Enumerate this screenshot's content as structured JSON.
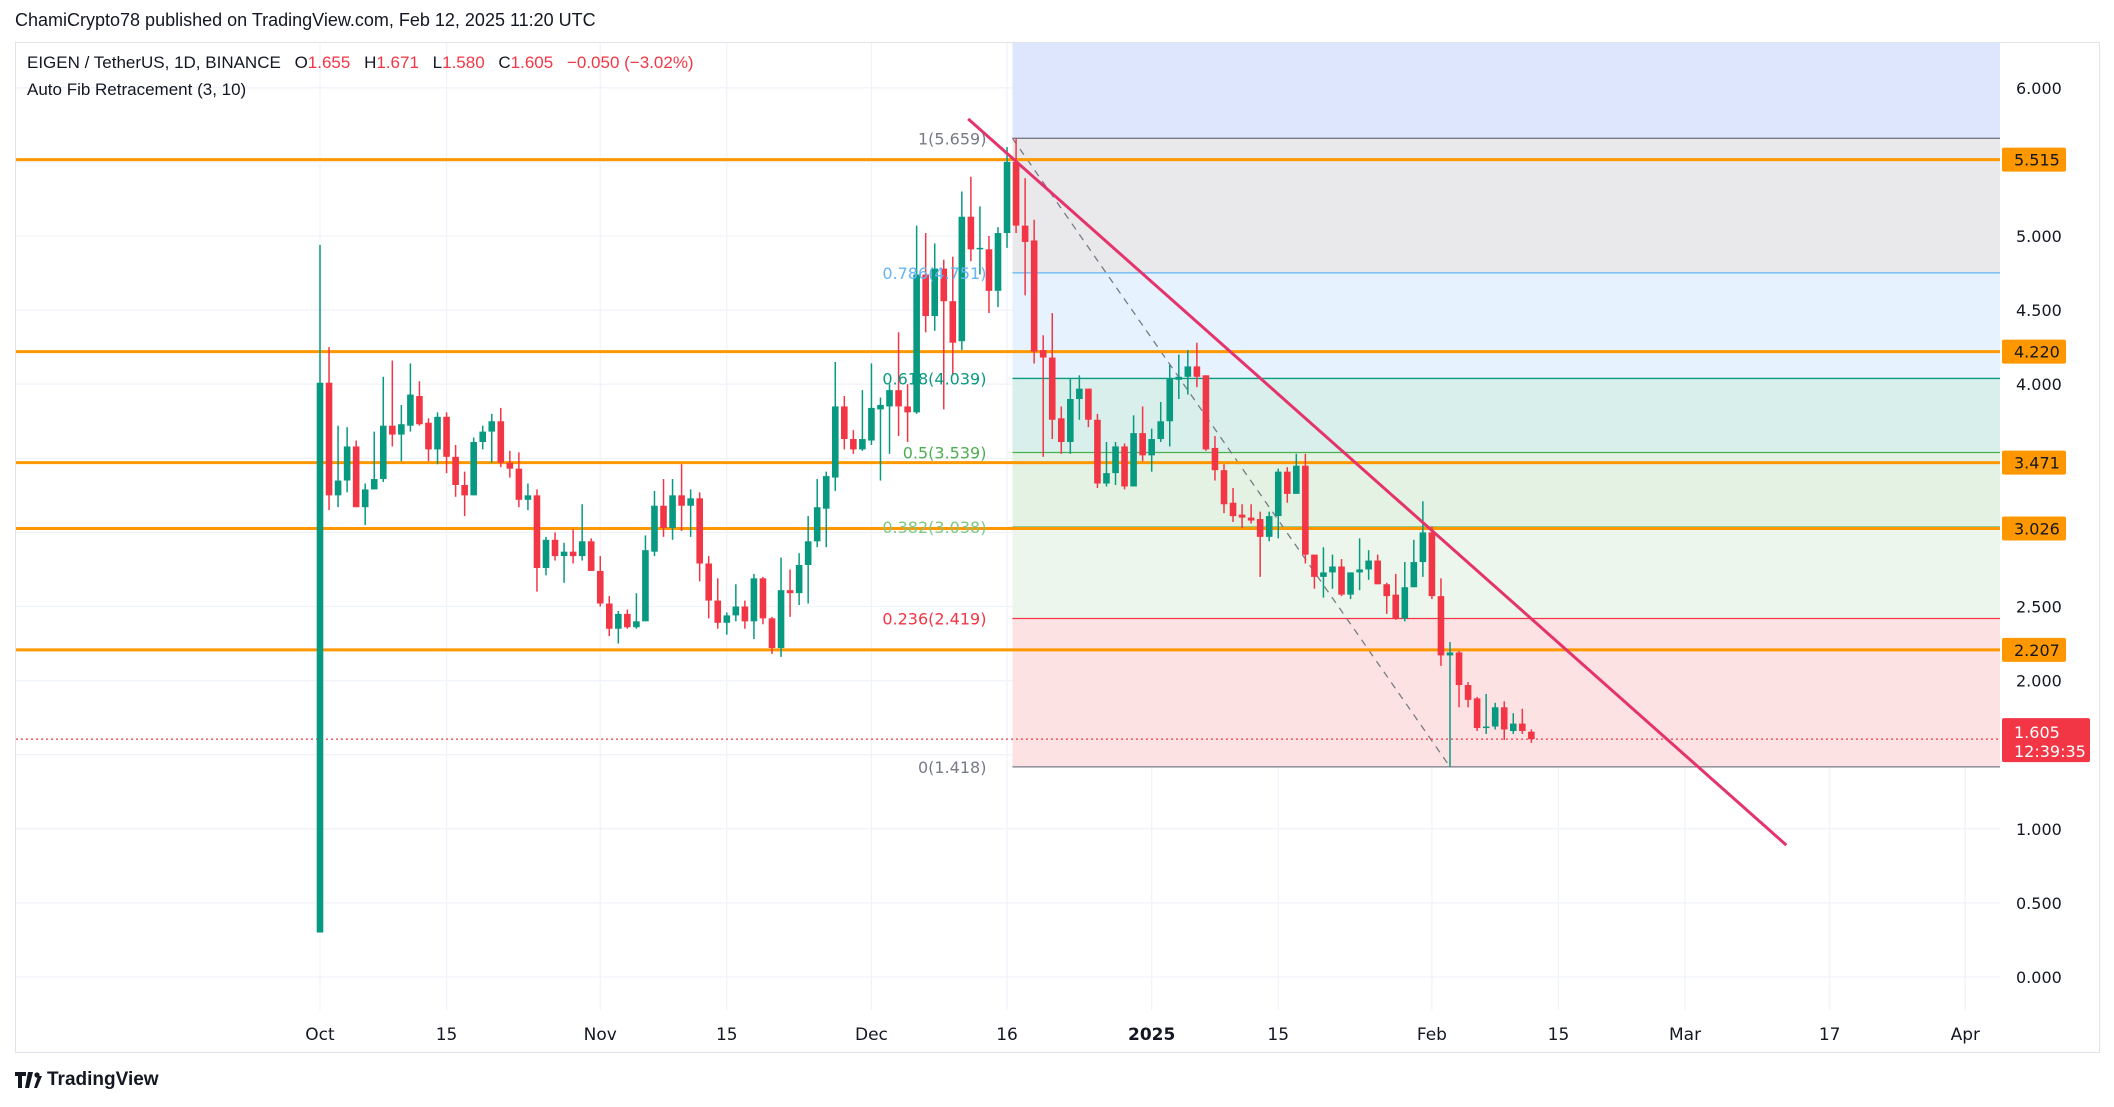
{
  "header": {
    "published": "ChamiCrypto78 published on TradingView.com, Feb 12, 2025 11:20 UTC"
  },
  "legend": {
    "symbol": "EIGEN / TetherUS, 1D, BINANCE",
    "o_label": "O",
    "o": "1.655",
    "h_label": "H",
    "h": "1.671",
    "l_label": "L",
    "l": "1.580",
    "c_label": "C",
    "c": "1.605",
    "change": "−0.050 (−3.02%)",
    "indicator": "Auto Fib Retracement (3, 10)"
  },
  "footer": {
    "brand": "TradingView"
  },
  "colors": {
    "up": "#089981",
    "down": "#f23645",
    "horizontal": "#ff9800",
    "trendline": "#e5336b",
    "price_line": "#f23645"
  },
  "chart_data": {
    "type": "candlestick",
    "symbol": "EIGEN/USDT",
    "interval": "1D",
    "start_date": "2024-10-01",
    "ohlc_fields": [
      "open",
      "high",
      "low",
      "close"
    ],
    "candles": [
      [
        0.3,
        4.94,
        0.3,
        4.01
      ],
      [
        4.01,
        4.25,
        3.15,
        3.25
      ],
      [
        3.25,
        3.72,
        3.17,
        3.35
      ],
      [
        3.35,
        3.71,
        3.27,
        3.58
      ],
      [
        3.58,
        3.62,
        3.17,
        3.17
      ],
      [
        3.17,
        3.33,
        3.05,
        3.29
      ],
      [
        3.29,
        3.68,
        3.29,
        3.36
      ],
      [
        3.36,
        4.05,
        3.34,
        3.72
      ],
      [
        3.72,
        4.16,
        3.58,
        3.66
      ],
      [
        3.66,
        3.86,
        3.48,
        3.73
      ],
      [
        3.72,
        4.14,
        3.68,
        3.93
      ],
      [
        3.92,
        4.02,
        3.72,
        3.73
      ],
      [
        3.74,
        3.77,
        3.48,
        3.56
      ],
      [
        3.56,
        3.81,
        3.46,
        3.78
      ],
      [
        3.78,
        3.81,
        3.4,
        3.51
      ],
      [
        3.51,
        3.59,
        3.24,
        3.32
      ],
      [
        3.32,
        3.41,
        3.11,
        3.25
      ],
      [
        3.25,
        3.64,
        3.25,
        3.61
      ],
      [
        3.61,
        3.72,
        3.56,
        3.68
      ],
      [
        3.68,
        3.8,
        3.47,
        3.75
      ],
      [
        3.75,
        3.84,
        3.44,
        3.47
      ],
      [
        3.47,
        3.55,
        3.37,
        3.43
      ],
      [
        3.43,
        3.54,
        3.17,
        3.22
      ],
      [
        3.22,
        3.33,
        3.15,
        3.25
      ],
      [
        3.25,
        3.29,
        2.6,
        2.76
      ],
      [
        2.76,
        2.97,
        2.71,
        2.95
      ],
      [
        2.95,
        3.0,
        2.81,
        2.84
      ],
      [
        2.84,
        2.93,
        2.66,
        2.87
      ],
      [
        2.87,
        3.02,
        2.79,
        2.84
      ],
      [
        2.84,
        3.19,
        2.81,
        2.94
      ],
      [
        2.94,
        2.96,
        2.74,
        2.74
      ],
      [
        2.74,
        2.84,
        2.5,
        2.52
      ],
      [
        2.52,
        2.57,
        2.3,
        2.35
      ],
      [
        2.35,
        2.47,
        2.25,
        2.45
      ],
      [
        2.45,
        2.48,
        2.35,
        2.36
      ],
      [
        2.36,
        2.59,
        2.35,
        2.4
      ],
      [
        2.4,
        2.98,
        2.4,
        2.88
      ],
      [
        2.87,
        3.28,
        2.84,
        3.18
      ],
      [
        3.18,
        3.36,
        2.97,
        3.03
      ],
      [
        3.03,
        3.36,
        2.95,
        3.25
      ],
      [
        3.25,
        3.46,
        3.01,
        3.18
      ],
      [
        3.18,
        3.29,
        2.97,
        3.23
      ],
      [
        3.23,
        3.27,
        2.67,
        2.79
      ],
      [
        2.79,
        2.84,
        2.42,
        2.54
      ],
      [
        2.54,
        2.69,
        2.35,
        2.39
      ],
      [
        2.39,
        2.46,
        2.31,
        2.44
      ],
      [
        2.44,
        2.65,
        2.4,
        2.5
      ],
      [
        2.5,
        2.54,
        2.35,
        2.4
      ],
      [
        2.4,
        2.72,
        2.28,
        2.69
      ],
      [
        2.69,
        2.7,
        2.38,
        2.42
      ],
      [
        2.42,
        2.43,
        2.18,
        2.22
      ],
      [
        2.22,
        2.83,
        2.16,
        2.61
      ],
      [
        2.61,
        2.75,
        2.43,
        2.59
      ],
      [
        2.59,
        2.86,
        2.51,
        2.78
      ],
      [
        2.78,
        3.11,
        2.52,
        2.94
      ],
      [
        2.94,
        3.36,
        2.9,
        3.17
      ],
      [
        3.16,
        3.41,
        2.9,
        3.38
      ],
      [
        3.37,
        4.15,
        3.28,
        3.85
      ],
      [
        3.85,
        3.92,
        3.56,
        3.63
      ],
      [
        3.63,
        3.69,
        3.53,
        3.56
      ],
      [
        3.56,
        3.96,
        3.55,
        3.63
      ],
      [
        3.62,
        4.14,
        3.59,
        3.84
      ],
      [
        3.83,
        3.91,
        3.35,
        3.86
      ],
      [
        3.85,
        4.0,
        3.53,
        3.96
      ],
      [
        3.96,
        4.35,
        3.65,
        3.85
      ],
      [
        3.85,
        4.0,
        3.61,
        3.81
      ],
      [
        3.81,
        5.07,
        3.8,
        4.74
      ],
      [
        4.74,
        5.02,
        4.35,
        4.46
      ],
      [
        4.46,
        4.95,
        4.36,
        4.78
      ],
      [
        4.78,
        4.84,
        3.83,
        4.56
      ],
      [
        4.56,
        4.86,
        4.06,
        4.28
      ],
      [
        4.29,
        5.3,
        4.23,
        5.13
      ],
      [
        5.13,
        5.4,
        4.83,
        4.91
      ],
      [
        4.91,
        5.2,
        4.74,
        4.92
      ],
      [
        4.91,
        5.0,
        4.48,
        4.63
      ],
      [
        4.63,
        5.06,
        4.52,
        5.02
      ],
      [
        5.02,
        5.6,
        4.92,
        5.5
      ],
      [
        5.5,
        5.66,
        5.02,
        5.07
      ],
      [
        5.07,
        5.39,
        4.6,
        4.96
      ],
      [
        4.97,
        5.11,
        4.14,
        4.22
      ],
      [
        4.23,
        4.33,
        3.51,
        4.18
      ],
      [
        4.18,
        4.48,
        3.63,
        3.76
      ],
      [
        3.77,
        3.85,
        3.53,
        3.61
      ],
      [
        3.61,
        4.04,
        3.53,
        3.9
      ],
      [
        3.9,
        4.06,
        3.76,
        3.97
      ],
      [
        3.97,
        3.97,
        3.71,
        3.76
      ],
      [
        3.76,
        3.8,
        3.3,
        3.33
      ],
      [
        3.33,
        3.61,
        3.31,
        3.4
      ],
      [
        3.4,
        3.61,
        3.32,
        3.58
      ],
      [
        3.58,
        3.6,
        3.29,
        3.31
      ],
      [
        3.31,
        3.79,
        3.31,
        3.67
      ],
      [
        3.67,
        3.85,
        3.48,
        3.52
      ],
      [
        3.52,
        3.7,
        3.41,
        3.63
      ],
      [
        3.63,
        3.88,
        3.61,
        3.75
      ],
      [
        3.75,
        4.13,
        3.58,
        4.04
      ],
      [
        4.03,
        4.2,
        3.9,
        4.05
      ],
      [
        4.05,
        4.23,
        3.93,
        4.12
      ],
      [
        4.12,
        4.28,
        3.98,
        4.05
      ],
      [
        4.06,
        4.06,
        3.55,
        3.56
      ],
      [
        3.57,
        3.65,
        3.35,
        3.42
      ],
      [
        3.42,
        3.46,
        3.13,
        3.19
      ],
      [
        3.2,
        3.3,
        3.07,
        3.11
      ],
      [
        3.12,
        3.19,
        3.03,
        3.1
      ],
      [
        3.1,
        3.19,
        3.06,
        3.08
      ],
      [
        3.09,
        3.14,
        2.7,
        2.97
      ],
      [
        2.97,
        3.14,
        2.94,
        3.11
      ],
      [
        3.11,
        3.43,
        2.96,
        3.41
      ],
      [
        3.41,
        3.44,
        3.2,
        3.26
      ],
      [
        3.26,
        3.53,
        3.26,
        3.45
      ],
      [
        3.45,
        3.53,
        2.79,
        2.85
      ],
      [
        2.85,
        2.85,
        2.62,
        2.7
      ],
      [
        2.7,
        2.9,
        2.56,
        2.73
      ],
      [
        2.73,
        2.85,
        2.62,
        2.77
      ],
      [
        2.77,
        2.82,
        2.57,
        2.58
      ],
      [
        2.58,
        2.73,
        2.55,
        2.73
      ],
      [
        2.73,
        2.96,
        2.61,
        2.75
      ],
      [
        2.75,
        2.88,
        2.68,
        2.81
      ],
      [
        2.81,
        2.85,
        2.65,
        2.65
      ],
      [
        2.65,
        2.66,
        2.45,
        2.57
      ],
      [
        2.58,
        2.72,
        2.41,
        2.42
      ],
      [
        2.42,
        2.8,
        2.4,
        2.63
      ],
      [
        2.63,
        2.95,
        2.63,
        2.8
      ],
      [
        2.8,
        3.21,
        2.7,
        3.0
      ],
      [
        3.0,
        3.04,
        2.55,
        2.57
      ],
      [
        2.57,
        2.69,
        2.1,
        2.17
      ],
      [
        2.17,
        2.26,
        1.42,
        2.19
      ],
      [
        2.19,
        2.2,
        1.82,
        1.97
      ],
      [
        1.97,
        1.99,
        1.82,
        1.87
      ],
      [
        1.88,
        1.89,
        1.66,
        1.68
      ],
      [
        1.68,
        1.91,
        1.64,
        1.69
      ],
      [
        1.69,
        1.85,
        1.67,
        1.82
      ],
      [
        1.82,
        1.86,
        1.6,
        1.67
      ],
      [
        1.66,
        1.78,
        1.64,
        1.71
      ],
      [
        1.71,
        1.81,
        1.64,
        1.66
      ],
      [
        1.655,
        1.671,
        1.58,
        1.605
      ]
    ],
    "y_axis": {
      "range": [
        0,
        6
      ],
      "ticks": [
        "6.000",
        "5.000",
        "4.500",
        "4.000",
        "2.500",
        "2.000",
        "1.000",
        "0.500",
        "0.000"
      ]
    },
    "x_axis": {
      "ticks": [
        {
          "label": "Oct",
          "day": 0
        },
        {
          "label": "15",
          "day": 14
        },
        {
          "label": "Nov",
          "day": 31
        },
        {
          "label": "15",
          "day": 45
        },
        {
          "label": "Dec",
          "day": 61
        },
        {
          "label": "16",
          "day": 76
        },
        {
          "label": "2025",
          "day": 92,
          "bold": true
        },
        {
          "label": "15",
          "day": 106
        },
        {
          "label": "Feb",
          "day": 123
        },
        {
          "label": "15",
          "day": 137
        },
        {
          "label": "Mar",
          "day": 151
        },
        {
          "label": "17",
          "day": 167
        },
        {
          "label": "Apr",
          "day": 182
        }
      ]
    },
    "horizontal_levels": [
      {
        "value": 5.515,
        "label": "5.515"
      },
      {
        "value": 4.22,
        "label": "4.220"
      },
      {
        "value": 3.471,
        "label": "3.471"
      },
      {
        "value": 3.026,
        "label": "3.026"
      },
      {
        "value": 2.207,
        "label": "2.207"
      }
    ],
    "fib": {
      "start_day": 76.6,
      "end_day": 125,
      "levels": [
        {
          "ratio": 1,
          "price": 5.659,
          "label": "1(5.659)",
          "color": "#787b86",
          "fill": "#e9e9ec"
        },
        {
          "ratio": 0.786,
          "price": 4.751,
          "label": "0.786(4.751)",
          "color": "#64b5f6",
          "fill": "#e6f2fd"
        },
        {
          "ratio": 0.618,
          "price": 4.039,
          "label": "0.618(4.039)",
          "color": "#089981",
          "fill": "#d9efeb"
        },
        {
          "ratio": 0.5,
          "price": 3.539,
          "label": "0.5(3.539)",
          "color": "#4caf50",
          "fill": "#e3f2e3"
        },
        {
          "ratio": 0.382,
          "price": 3.038,
          "label": "0.382(3.038)",
          "color": "#81c784",
          "fill": "#ecf6ec"
        },
        {
          "ratio": 0.236,
          "price": 2.419,
          "label": "0.236(2.419)",
          "color": "#f23645",
          "fill": "#fde2e3"
        },
        {
          "ratio": 0,
          "price": 1.418,
          "label": "0(1.418)",
          "color": "#787b86",
          "fill": null
        }
      ],
      "above_fill": "#dde6fd"
    },
    "trendline": [
      {
        "day": 71.7,
        "price": 5.79
      },
      {
        "day": 162.2,
        "price": 0.89
      }
    ],
    "last_price": {
      "value": 1.605,
      "label": "1.605",
      "countdown": "12:39:35"
    }
  }
}
